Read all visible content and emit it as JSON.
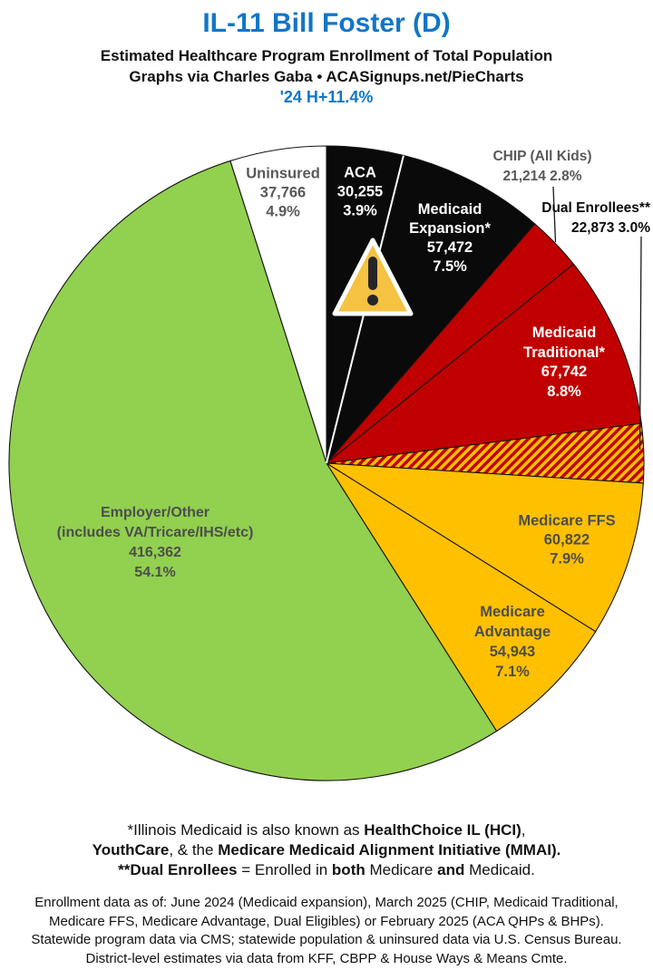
{
  "header": {
    "title": "IL-11 Bill Foster (D)",
    "subtitle": "Estimated Healthcare Program Enrollment of Total Population",
    "credit": "Graphs via Charles Gaba   •   ACASignups.net/PieCharts",
    "growth": "'24 H+11.4%"
  },
  "colors": {
    "title_blue": "#1176C8",
    "black_slice": "#0A0A0A",
    "red_slice": "#C00000",
    "yellow_slice": "#FFC000",
    "green_slice": "#92D050",
    "white_slice": "#FFFFFF",
    "gray_label": "#595959",
    "dark_label": "#4D4D4D"
  },
  "chart_data": {
    "type": "pie",
    "title": "Estimated Healthcare Program Enrollment of Total Population",
    "start_angle_deg": 0,
    "direction": "clockwise",
    "legend_position": "labels-on-slices",
    "annotations": [
      {
        "icon": "warning-triangle-icon"
      }
    ],
    "slices": [
      {
        "id": "aca",
        "name": "ACA",
        "value": 30255,
        "value_display": "30,255",
        "pct": 3.9,
        "pct_display": "3.9%",
        "color": "#0A0A0A",
        "label_lines": [
          "ACA",
          "30,255",
          "3.9%"
        ]
      },
      {
        "id": "medicaid-expansion",
        "name": "Medicaid Expansion*",
        "value": 57472,
        "value_display": "57,472",
        "pct": 7.5,
        "pct_display": "7.5%",
        "color": "#0A0A0A",
        "label_lines": [
          "Medicaid",
          "Expansion*",
          "57,472",
          "7.5%"
        ]
      },
      {
        "id": "chip",
        "name": "CHIP (All Kids)",
        "value": 21214,
        "value_display": "21,214",
        "pct": 2.8,
        "pct_display": "2.8%",
        "color": "#C00000",
        "label_lines": [
          "CHIP (All Kids)",
          "21,214 2.8%"
        ]
      },
      {
        "id": "medicaid-traditional",
        "name": "Medicaid Traditional*",
        "value": 67742,
        "value_display": "67,742",
        "pct": 8.8,
        "pct_display": "8.8%",
        "color": "#C00000",
        "label_lines": [
          "Medicaid",
          "Traditional*",
          "67,742",
          "8.8%"
        ]
      },
      {
        "id": "dual",
        "name": "Dual Enrollees**",
        "value": 22873,
        "value_display": "22,873",
        "pct": 3.0,
        "pct_display": "3.0%",
        "color": "red-yellow-hatch",
        "label_lines": [
          "Dual Enrollees**",
          "22,873 3.0%"
        ]
      },
      {
        "id": "medicare-ffs",
        "name": "Medicare FFS",
        "value": 60822,
        "value_display": "60,822",
        "pct": 7.9,
        "pct_display": "7.9%",
        "color": "#FFC000",
        "label_lines": [
          "Medicare FFS",
          "60,822",
          "7.9%"
        ]
      },
      {
        "id": "medicare-advantage",
        "name": "Medicare Advantage",
        "value": 54943,
        "value_display": "54,943",
        "pct": 7.1,
        "pct_display": "7.1%",
        "color": "#FFC000",
        "label_lines": [
          "Medicare",
          "Advantage",
          "54,943",
          "7.1%"
        ]
      },
      {
        "id": "employer",
        "name": "Employer/Other (includes VA/Tricare/IHS/etc)",
        "value": 416362,
        "value_display": "416,362",
        "pct": 54.1,
        "pct_display": "54.1%",
        "color": "#92D050",
        "label_lines": [
          "Employer/Other",
          "(includes VA/Tricare/IHS/etc)",
          "416,362",
          "54.1%"
        ]
      },
      {
        "id": "uninsured",
        "name": "Uninsured",
        "value": 37766,
        "value_display": "37,766",
        "pct": 4.9,
        "pct_display": "4.9%",
        "color": "#FFFFFF",
        "label_lines": [
          "Uninsured",
          "37,766",
          "4.9%"
        ]
      }
    ]
  },
  "footer": {
    "note_lines": [
      [
        {
          "t": "*Illinois Medicaid is also known as ",
          "b": false
        },
        {
          "t": "HealthChoice IL (HCI)",
          "b": true
        },
        {
          "t": ",",
          "b": false
        }
      ],
      [
        {
          "t": "YouthCare",
          "b": true
        },
        {
          "t": ", & the ",
          "b": false
        },
        {
          "t": "Medicare Medicaid Alignment Initiative (MMAI).",
          "b": true
        }
      ],
      [
        {
          "t": "**Dual Enrollees",
          "b": true
        },
        {
          "t": " = Enrolled in ",
          "b": false
        },
        {
          "t": "both",
          "b": true
        },
        {
          "t": " Medicare ",
          "b": false
        },
        {
          "t": "and",
          "b": true
        },
        {
          "t": " Medicaid.",
          "b": false
        }
      ]
    ],
    "source_lines": [
      "Enrollment data as of: June 2024 (Medicaid expansion), March 2025 (CHIP, Medicaid Traditional,",
      "Medicare FFS, Medicare Advantage, Dual Eligibles) or February 2025 (ACA QHPs & BHPs).",
      "Statewide program data via CMS; statewide population & uninsured data via U.S. Census Bureau.",
      "District-level estimates via data from KFF, CBPP & House Ways & Means Cmte."
    ]
  }
}
